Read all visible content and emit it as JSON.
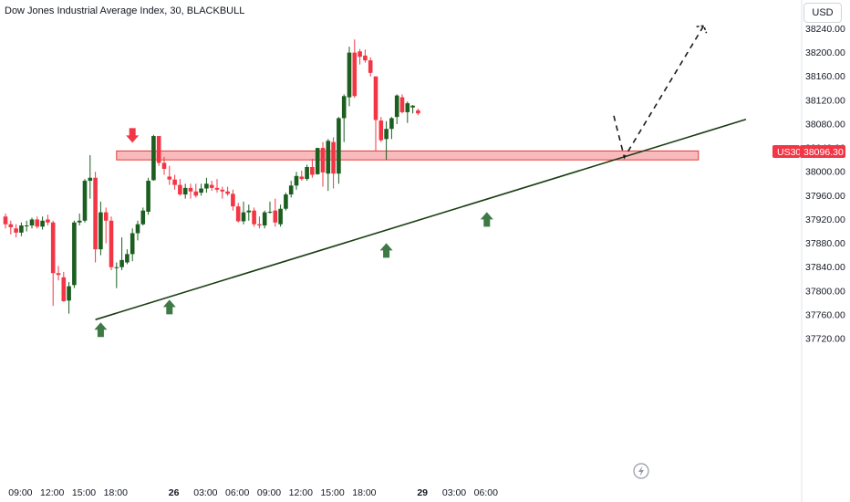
{
  "title": "Dow Jones Industrial Average Index, 30, BLACKBULL",
  "currency_button": "USD",
  "price_tag": {
    "symbol": "US30",
    "price": "38096.30",
    "color": "#f23645"
  },
  "colors": {
    "up": "#1b5e20",
    "down": "#f23645",
    "zone_fill": "#f7a3a8",
    "zone_border": "#e53935",
    "trendline": "#1b3d12",
    "marker_up": "#3e7a45",
    "marker_down": "#f23645"
  },
  "icons": {
    "lightning": "lightning-icon"
  },
  "chart_data": {
    "type": "candlestick",
    "title": "Dow Jones Industrial Average Index, 30, BLACKBULL",
    "ylim": [
      37712,
      38250
    ],
    "y_ticks": [
      "38240.00",
      "38200.00",
      "38160.00",
      "38120.00",
      "38080.00",
      "38040.00",
      "38000.00",
      "37960.00",
      "37920.00",
      "37880.00",
      "37840.00",
      "37800.00",
      "37760.00",
      "37720.00"
    ],
    "x_ticks": [
      {
        "label": "09:00",
        "bar": 3
      },
      {
        "label": "12:00",
        "bar": 9
      },
      {
        "label": "15:00",
        "bar": 15
      },
      {
        "label": "18:00",
        "bar": 21
      },
      {
        "label": "26",
        "bar": 32,
        "bold": true
      },
      {
        "label": "03:00",
        "bar": 38
      },
      {
        "label": "06:00",
        "bar": 44
      },
      {
        "label": "09:00",
        "bar": 50
      },
      {
        "label": "12:00",
        "bar": 56
      },
      {
        "label": "15:00",
        "bar": 62
      },
      {
        "label": "18:00",
        "bar": 68
      },
      {
        "label": "29",
        "bar": 79,
        "bold": true
      },
      {
        "label": "03:00",
        "bar": 85
      },
      {
        "label": "06:00",
        "bar": 91
      }
    ],
    "candles": [
      [
        37925,
        37930,
        37905,
        37912
      ],
      [
        37912,
        37918,
        37895,
        37907
      ],
      [
        37905,
        37912,
        37890,
        37898
      ],
      [
        37898,
        37915,
        37892,
        37910
      ],
      [
        37910,
        37918,
        37900,
        37910
      ],
      [
        37910,
        37923,
        37905,
        37920
      ],
      [
        37920,
        37925,
        37905,
        37908
      ],
      [
        37908,
        37925,
        37903,
        37918
      ],
      [
        37920,
        37928,
        37910,
        37915
      ],
      [
        37915,
        37918,
        37775,
        37830
      ],
      [
        37830,
        37842,
        37818,
        37827
      ],
      [
        37823,
        37832,
        37782,
        37783
      ],
      [
        37784,
        37815,
        37762,
        37808
      ],
      [
        37810,
        37918,
        37805,
        37915
      ],
      [
        37915,
        37930,
        37910,
        37918
      ],
      [
        37918,
        37988,
        37915,
        37985
      ],
      [
        37985,
        38028,
        37955,
        37990
      ],
      [
        37990,
        38000,
        37848,
        37870
      ],
      [
        37870,
        37950,
        37860,
        37932
      ],
      [
        37932,
        37940,
        37880,
        37918
      ],
      [
        37918,
        37925,
        37835,
        37840
      ],
      [
        37840,
        37848,
        37805,
        37840
      ],
      [
        37840,
        37890,
        37835,
        37852
      ],
      [
        37848,
        37870,
        37845,
        37862
      ],
      [
        37862,
        37905,
        37850,
        37897
      ],
      [
        37897,
        37918,
        37885,
        37912
      ],
      [
        37912,
        37940,
        37910,
        37935
      ],
      [
        37933,
        37990,
        37928,
        37985
      ],
      [
        37986,
        38062,
        37985,
        38060
      ],
      [
        38060,
        38060,
        38010,
        38015
      ],
      [
        38015,
        38025,
        37995,
        38005
      ],
      [
        37992,
        38010,
        37978,
        37987
      ],
      [
        37987,
        37995,
        37970,
        37978
      ],
      [
        37978,
        37988,
        37960,
        37962
      ],
      [
        37962,
        37980,
        37955,
        37973
      ],
      [
        37973,
        37980,
        37955,
        37967
      ],
      [
        37967,
        37980,
        37957,
        37960
      ],
      [
        37965,
        37980,
        37960,
        37972
      ],
      [
        37972,
        37990,
        37965,
        37980
      ],
      [
        37978,
        37985,
        37968,
        37973
      ],
      [
        37973,
        37988,
        37965,
        37970
      ],
      [
        37970,
        37975,
        37955,
        37967
      ],
      [
        37967,
        37975,
        37960,
        37963
      ],
      [
        37963,
        37970,
        37935,
        37942
      ],
      [
        37942,
        37948,
        37915,
        37917
      ],
      [
        37917,
        37950,
        37912,
        37932
      ],
      [
        37932,
        37945,
        37918,
        37935
      ],
      [
        37935,
        37940,
        37908,
        37912
      ],
      [
        37912,
        37925,
        37905,
        37910
      ],
      [
        37910,
        37935,
        37905,
        37932
      ],
      [
        37932,
        37950,
        37930,
        37933
      ],
      [
        37935,
        37955,
        37908,
        37915
      ],
      [
        37912,
        37945,
        37908,
        37938
      ],
      [
        37938,
        37965,
        37935,
        37962
      ],
      [
        37962,
        37985,
        37957,
        37977
      ],
      [
        37977,
        38000,
        37970,
        37993
      ],
      [
        37992,
        38002,
        37985,
        37988
      ],
      [
        37988,
        38012,
        37985,
        38008
      ],
      [
        38008,
        38022,
        37990,
        37995
      ],
      [
        37996,
        38040,
        37995,
        38040
      ],
      [
        38040,
        38050,
        37975,
        37999
      ],
      [
        37997,
        38055,
        37968,
        38052
      ],
      [
        38050,
        38058,
        37972,
        37997
      ],
      [
        37997,
        38092,
        37980,
        38090
      ],
      [
        38090,
        38130,
        38050,
        38127
      ],
      [
        38125,
        38210,
        38110,
        38200
      ],
      [
        38200,
        38222,
        38124,
        38127
      ],
      [
        38202,
        38206,
        38180,
        38193
      ],
      [
        38195,
        38205,
        38183,
        38187
      ],
      [
        38187,
        38192,
        38160,
        38166
      ],
      [
        38160,
        38160,
        38035,
        38087
      ],
      [
        38086,
        38092,
        38050,
        38053
      ],
      [
        38055,
        38085,
        38020,
        38072
      ],
      [
        38072,
        38092,
        38055,
        38090
      ],
      [
        38092,
        38130,
        38080,
        38128
      ],
      [
        38125,
        38130,
        38098,
        38100
      ],
      [
        38100,
        38118,
        38082,
        38115
      ],
      [
        38108,
        38112,
        38098,
        38111
      ],
      [
        38103,
        38106,
        38095,
        38098
      ]
    ],
    "annotations": {
      "resistance_zone": {
        "bar_from": 21,
        "bar_to": 131,
        "price_from": 38020,
        "price_to": 38035
      },
      "trendline": [
        {
          "bar": 17,
          "price": 37752
        },
        {
          "bar": 140,
          "price": 38088
        }
      ],
      "projection": [
        {
          "bar": 115,
          "price": 38094
        },
        {
          "bar": 117,
          "price": 38024
        },
        {
          "bar": 132,
          "price": 38245
        }
      ],
      "arrows_down": [
        {
          "bar": 24,
          "price": 38055
        }
      ],
      "arrows_up": [
        {
          "bar": 18,
          "price": 37752
        },
        {
          "bar": 31,
          "price": 37790
        },
        {
          "bar": 72,
          "price": 37885
        },
        {
          "bar": 91,
          "price": 37937
        }
      ]
    }
  }
}
